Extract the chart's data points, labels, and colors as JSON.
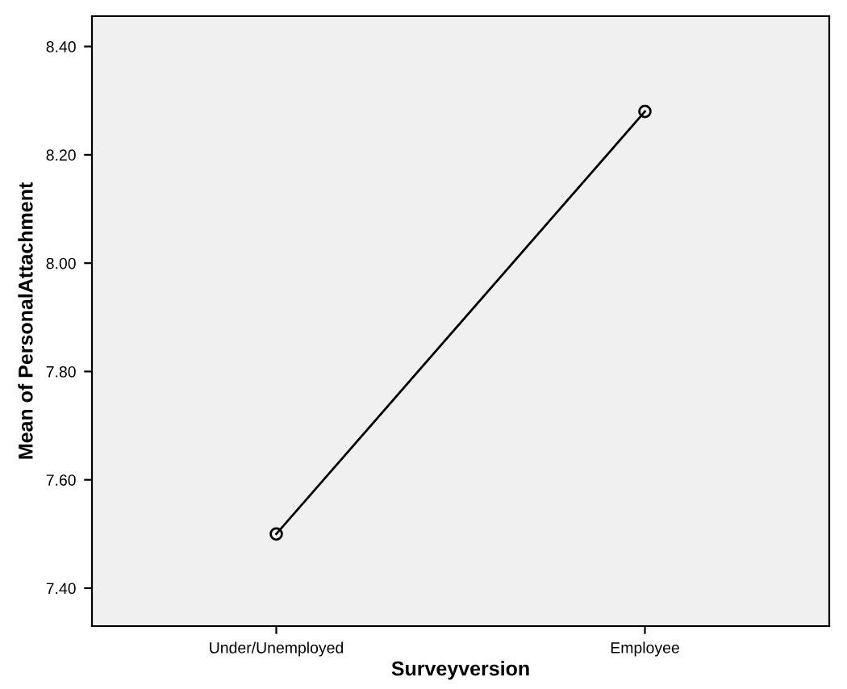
{
  "chart_data": {
    "type": "line",
    "xlabel": "Surveyversion",
    "ylabel": "Mean of PersonalAttachment",
    "categories": [
      "Under/Unemployed",
      "Employee"
    ],
    "series": [
      {
        "color": "#000000",
        "values": [
          7.5,
          8.28
        ]
      }
    ],
    "ylim": [
      7.33,
      8.456
    ],
    "yticks": [
      {
        "value": 7.4,
        "label": "7.40"
      },
      {
        "value": 7.6,
        "label": "7.60"
      },
      {
        "value": 7.8,
        "label": "7.80"
      },
      {
        "value": 8.0,
        "label": "8.00"
      },
      {
        "value": 8.2,
        "label": "8.20"
      },
      {
        "value": 8.4,
        "label": "8.40"
      }
    ],
    "grid": false,
    "legend": false,
    "marker": "circle",
    "line_style": "solid"
  }
}
